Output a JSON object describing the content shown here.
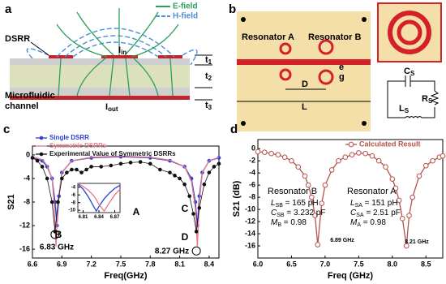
{
  "panel_a": {
    "label": "a",
    "legend": [
      {
        "name": "E-field",
        "color": "#2ca05a"
      },
      {
        "name": "H-field",
        "color": "#4a90d9"
      }
    ],
    "dsrr": "DSRR",
    "i_in": {
      "main": "I",
      "sub": "in"
    },
    "i_out": {
      "main": "I",
      "sub": "out"
    },
    "channel": [
      "Microfluidic",
      "channel"
    ],
    "thickness": [
      {
        "main": "t",
        "sub": "1"
      },
      {
        "main": "t",
        "sub": "2"
      },
      {
        "main": "t",
        "sub": "3"
      }
    ]
  },
  "panel_b": {
    "label": "b",
    "resonator_a": "Resonator A",
    "resonator_b": "Resonator B",
    "e": "e",
    "g": "g",
    "d": "D",
    "l": "L",
    "c_s": {
      "main": "C",
      "sub": "S"
    },
    "r_s": {
      "main": "R",
      "sub": "S"
    },
    "l_s": {
      "main": "L",
      "sub": "S"
    }
  },
  "chart_data": [
    {
      "type": "line",
      "panel": "c",
      "xlabel": "Freq(GHz)",
      "ylabel": "S21",
      "xlim": [
        6.6,
        8.5
      ],
      "ylim": [
        -17.5,
        1.5
      ],
      "xticks": [
        6.6,
        6.9,
        7.2,
        7.5,
        7.8,
        8.1,
        8.4
      ],
      "yticks": [
        0,
        -4,
        -8,
        -12,
        -16
      ],
      "series": [
        {
          "name": "Single DSRR",
          "color": "#2b3fd6",
          "style": "line-dot",
          "x": [
            6.6,
            6.7,
            6.75,
            6.8,
            6.83,
            6.85,
            6.87,
            6.9,
            7.0,
            7.2,
            7.5,
            7.8,
            8.0,
            8.15,
            8.22,
            8.26,
            8.28,
            8.3,
            8.33,
            8.4,
            8.5
          ],
          "values": [
            -0.5,
            -1,
            -2,
            -4,
            -8,
            -12,
            -7,
            -3,
            -1,
            -0.5,
            -0.3,
            -0.5,
            -1,
            -2,
            -4,
            -8,
            -12,
            -7,
            -3,
            -1,
            -0.5
          ]
        },
        {
          "name": "Symmetric DSRRs",
          "color": "#e07a8a",
          "style": "line",
          "x": [
            6.6,
            6.7,
            6.75,
            6.8,
            6.82,
            6.84,
            6.86,
            6.9,
            7.0,
            7.2,
            7.5,
            7.8,
            8.0,
            8.15,
            8.22,
            8.26,
            8.28,
            8.3,
            8.33,
            8.4,
            8.5
          ],
          "values": [
            -0.3,
            -0.8,
            -1.8,
            -4,
            -8,
            -15.5,
            -8,
            -3,
            -1,
            -0.4,
            -0.2,
            -0.4,
            -0.9,
            -2,
            -4.5,
            -9,
            -15.5,
            -8,
            -3,
            -1,
            -0.4
          ]
        },
        {
          "name": "Experimental Value of Symmetric DSRRs",
          "color": "#111111",
          "style": "dot-line",
          "x": [
            6.6,
            6.65,
            6.7,
            6.75,
            6.8,
            6.83,
            6.86,
            6.9,
            6.95,
            7.0,
            7.05,
            7.1,
            7.15,
            7.2,
            7.3,
            7.4,
            7.5,
            7.6,
            7.7,
            7.8,
            7.9,
            8.0,
            8.05,
            8.1,
            8.15,
            8.2,
            8.24,
            8.27,
            8.3,
            8.35,
            8.4,
            8.45,
            8.5
          ],
          "values": [
            -0.5,
            -1,
            -2,
            -4,
            -8,
            -13,
            -8,
            -4,
            -3,
            -2.5,
            -2.5,
            -3,
            -2.5,
            -2,
            -2,
            -1.8,
            -1.5,
            -1.3,
            -1.2,
            -1.5,
            -2.5,
            -3,
            -3.5,
            -4,
            -5,
            -7,
            -10,
            -13,
            -9,
            -5,
            -3,
            -2,
            -1.5
          ]
        }
      ],
      "annotations": [
        "A",
        "B",
        "C",
        "D",
        "6.83 GHz",
        "8.27 GHz"
      ]
    },
    {
      "type": "line",
      "xlim": [
        6.8,
        6.88
      ],
      "ylim": [
        -10.6,
        -3
      ],
      "xticks": [
        6.81,
        6.84,
        6.87
      ],
      "yticks": [
        -4,
        -6,
        -8,
        -10
      ],
      "series": [
        {
          "color": "#2b3fd6",
          "style": "line",
          "x": [
            6.8,
            6.81,
            6.82,
            6.83,
            6.835,
            6.84,
            6.85,
            6.86,
            6.87,
            6.88
          ],
          "values": [
            -3.2,
            -4.5,
            -6.5,
            -9,
            -10.2,
            -9,
            -7,
            -5.5,
            -4.3,
            -3.5
          ]
        },
        {
          "color": "#e07a8a",
          "style": "line",
          "x": [
            6.8,
            6.81,
            6.82,
            6.83,
            6.835,
            6.84,
            6.85,
            6.86,
            6.87,
            6.88
          ],
          "values": [
            -3,
            -3.8,
            -4.8,
            -6.2,
            -7.2,
            -8.5,
            -10.2,
            -8,
            -6,
            -4.5
          ]
        }
      ]
    },
    {
      "type": "line",
      "panel": "d",
      "xlabel": "Freq (GHz)",
      "ylabel": "S21 (dB)",
      "xlim": [
        6,
        8.75
      ],
      "ylim": [
        -18,
        1.5
      ],
      "xticks": [
        {
          "value": 6,
          "label": "6.0"
        },
        6.5,
        {
          "value": 7,
          "label": "7.0"
        },
        7.5,
        {
          "value": 8,
          "label": "8.0"
        },
        8.5
      ],
      "yticks": [
        0,
        -2,
        -4,
        -6,
        -8,
        -10,
        -12,
        -14,
        -16
      ],
      "series": [
        {
          "name": "Calculated Result",
          "color": "#b5524a",
          "style": "line-open",
          "x": [
            6.0,
            6.1,
            6.2,
            6.3,
            6.4,
            6.5,
            6.6,
            6.7,
            6.75,
            6.8,
            6.85,
            6.89,
            6.95,
            7.0,
            7.1,
            7.2,
            7.3,
            7.4,
            7.5,
            7.6,
            7.7,
            7.8,
            7.9,
            8.0,
            8.05,
            8.1,
            8.15,
            8.21,
            8.25,
            8.3,
            8.4,
            8.5,
            8.6,
            8.7,
            8.75
          ],
          "values": [
            -0.5,
            -0.6,
            -0.8,
            -1,
            -1.4,
            -2,
            -3,
            -4.5,
            -6,
            -8,
            -11,
            -15.8,
            -9,
            -6,
            -3.5,
            -2,
            -1.4,
            -1,
            -0.7,
            -0.8,
            -1.2,
            -2,
            -3,
            -5,
            -6.5,
            -8.5,
            -11.5,
            -16,
            -11,
            -8,
            -4.5,
            -2.8,
            -2,
            -1.4,
            -1.2
          ]
        }
      ],
      "annotations": [
        "6.89 GHz",
        "8.21 GHz"
      ],
      "resonators": [
        {
          "name": "Resonator B",
          "params": [
            [
              "L",
              "SB",
              " = 165 pH"
            ],
            [
              "C",
              "SB",
              " = 3.232 pF"
            ],
            [
              "M",
              "B",
              " = 0.98"
            ]
          ]
        },
        {
          "name": "Resonator A",
          "params": [
            [
              "L",
              "SA",
              " = 151 pH"
            ],
            [
              "C",
              "SA",
              " = 2.51 pF"
            ],
            [
              "M",
              "A",
              " = 0.98"
            ]
          ]
        }
      ]
    }
  ]
}
